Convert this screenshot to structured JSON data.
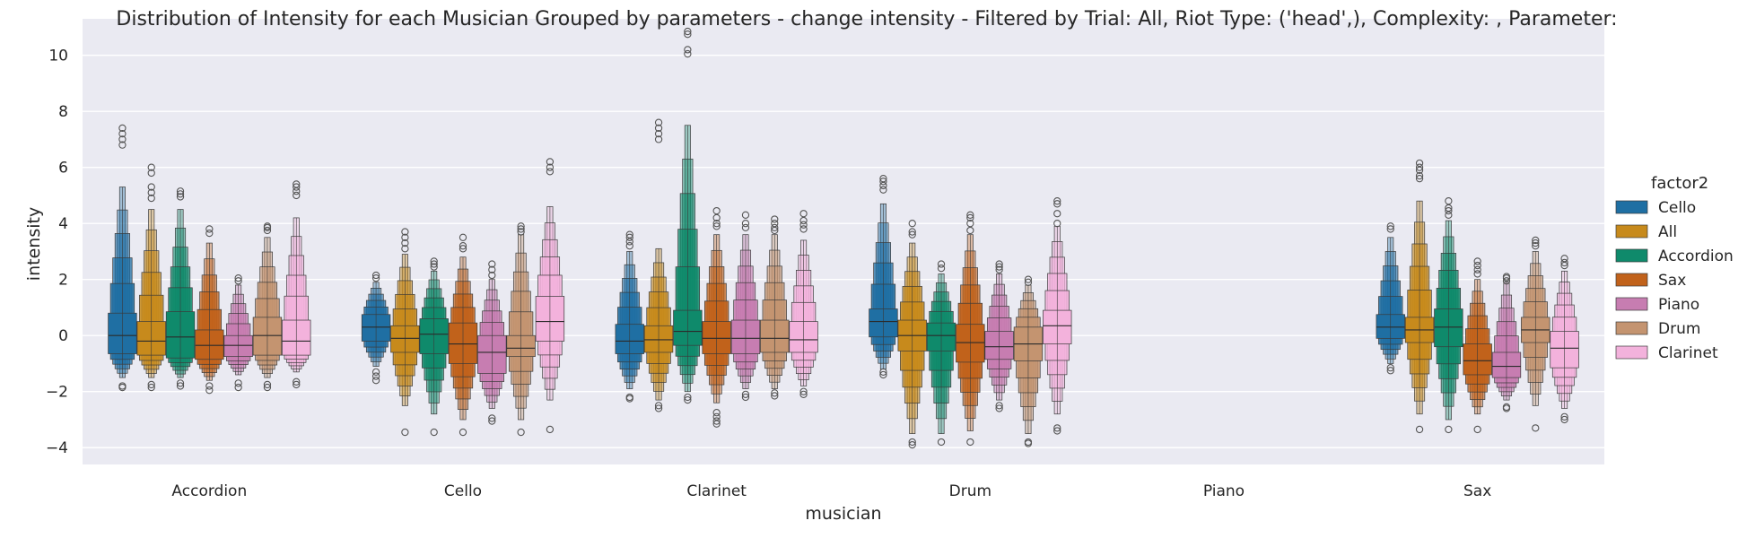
{
  "chart_data": {
    "type": "boxen",
    "title": "Distribution of Intensity for each Musician Grouped by parameters - change intensity - Filtered by Trial: All, Riot Type: ('head',), Complexity: , Parameter:",
    "xlabel": "musician",
    "ylabel": "intensity",
    "ylim": [
      -4.6,
      11.3
    ],
    "yticks": [
      -4,
      -2,
      0,
      2,
      4,
      6,
      8,
      10
    ],
    "ytick_labels": [
      "−4",
      "−2",
      "0",
      "2",
      "4",
      "6",
      "8",
      "10"
    ],
    "categories": [
      "Accordion",
      "Cello",
      "Clarinet",
      "Drum",
      "Piano",
      "Sax"
    ],
    "grid": true,
    "legend": {
      "title": "factor2",
      "placement": "center-right-outside",
      "entries": [
        {
          "name": "Cello",
          "color": "#1f6fa3"
        },
        {
          "name": "All",
          "color": "#c78a1c"
        },
        {
          "name": "Accordion",
          "color": "#0f8a6b"
        },
        {
          "name": "Sax",
          "color": "#c1621b"
        },
        {
          "name": "Piano",
          "color": "#c77db1"
        },
        {
          "name": "Drum",
          "color": "#c49470"
        },
        {
          "name": "Clarinet",
          "color": "#f3b2dc"
        }
      ]
    },
    "series": [
      {
        "name": "Cello",
        "color": "#1f6fa3",
        "stats": [
          {
            "median": 0.0,
            "q1": -0.65,
            "q3": 0.8,
            "lo": -1.5,
            "hi": 5.3,
            "outliers_low": [
              -1.8,
              -1.85
            ],
            "outliers_high": [
              6.8,
              7.0,
              7.2,
              7.4
            ]
          },
          {
            "median": 0.3,
            "q1": -0.2,
            "q3": 0.75,
            "lo": -1.1,
            "hi": 1.9,
            "outliers_low": [
              -1.3,
              -1.45,
              -1.6
            ],
            "outliers_high": [
              2.05,
              2.15
            ]
          },
          {
            "median": -0.2,
            "q1": -0.65,
            "q3": 0.4,
            "lo": -1.9,
            "hi": 3.0,
            "outliers_low": [
              -2.2,
              -2.25
            ],
            "outliers_high": [
              3.2,
              3.35,
              3.5,
              3.6
            ]
          },
          {
            "median": 0.5,
            "q1": -0.05,
            "q3": 0.95,
            "lo": -1.2,
            "hi": 4.7,
            "outliers_low": [
              -1.3,
              -1.4
            ],
            "outliers_high": [
              5.2,
              5.35,
              5.5,
              5.6
            ]
          },
          null,
          {
            "median": 0.3,
            "q1": -0.1,
            "q3": 0.75,
            "lo": -1.0,
            "hi": 3.5,
            "outliers_low": [
              -1.15,
              -1.25
            ],
            "outliers_high": [
              3.8,
              3.9
            ]
          }
        ]
      },
      {
        "name": "All",
        "color": "#c78a1c",
        "stats": [
          {
            "median": -0.2,
            "q1": -0.7,
            "q3": 0.5,
            "lo": -1.5,
            "hi": 4.5,
            "outliers_low": [
              -1.75,
              -1.85
            ],
            "outliers_high": [
              4.9,
              5.1,
              5.3,
              5.8,
              6.0
            ]
          },
          {
            "median": -0.1,
            "q1": -0.6,
            "q3": 0.35,
            "lo": -2.5,
            "hi": 2.9,
            "outliers_low": [
              -3.45
            ],
            "outliers_high": [
              3.1,
              3.3,
              3.5,
              3.7
            ]
          },
          {
            "median": -0.15,
            "q1": -0.6,
            "q3": 0.35,
            "lo": -2.3,
            "hi": 3.1,
            "outliers_low": [
              -2.5,
              -2.6
            ],
            "outliers_high": [
              7.0,
              7.2,
              7.4,
              7.6
            ]
          },
          {
            "median": 0.0,
            "q1": -0.55,
            "q3": 0.55,
            "lo": -3.5,
            "hi": 3.3,
            "outliers_low": [
              -3.8,
              -3.9
            ],
            "outliers_high": [
              3.6,
              3.7,
              4.0
            ]
          },
          null,
          {
            "median": 0.2,
            "q1": -0.25,
            "q3": 0.65,
            "lo": -2.8,
            "hi": 4.8,
            "outliers_low": [
              -3.35
            ],
            "outliers_high": [
              5.6,
              5.7,
              5.9,
              6.0,
              6.15
            ]
          }
        ]
      },
      {
        "name": "Accordion",
        "color": "#0f8a6b",
        "stats": [
          {
            "median": -0.05,
            "q1": -0.8,
            "q3": 0.85,
            "lo": -1.5,
            "hi": 4.5,
            "outliers_low": [
              -1.7,
              -1.8
            ],
            "outliers_high": [
              4.95,
              5.05,
              5.15
            ]
          },
          {
            "median": 0.05,
            "q1": -0.65,
            "q3": 0.6,
            "lo": -2.8,
            "hi": 2.3,
            "outliers_low": [
              -3.45
            ],
            "outliers_high": [
              2.45,
              2.55,
              2.65
            ]
          },
          {
            "median": 0.15,
            "q1": -0.35,
            "q3": 0.9,
            "lo": -2.0,
            "hi": 7.5,
            "outliers_low": [
              -2.2,
              -2.3
            ],
            "outliers_high": [
              10.05,
              10.2,
              10.75,
              10.85
            ]
          },
          {
            "median": 0.0,
            "q1": -0.55,
            "q3": 0.45,
            "lo": -3.5,
            "hi": 2.2,
            "outliers_low": [
              -3.8
            ],
            "outliers_high": [
              2.4,
              2.55
            ]
          },
          null,
          {
            "median": 0.3,
            "q1": -0.4,
            "q3": 0.95,
            "lo": -3.0,
            "hi": 4.1,
            "outliers_low": [
              -3.35
            ],
            "outliers_high": [
              4.3,
              4.45,
              4.55,
              4.8
            ]
          }
        ]
      },
      {
        "name": "Sax",
        "color": "#c1621b",
        "stats": [
          {
            "median": -0.35,
            "q1": -0.85,
            "q3": 0.2,
            "lo": -1.6,
            "hi": 3.3,
            "outliers_low": [
              -1.8,
              -1.95
            ],
            "outliers_high": [
              3.65,
              3.8
            ]
          },
          {
            "median": -0.3,
            "q1": -1.0,
            "q3": 0.45,
            "lo": -3.0,
            "hi": 2.8,
            "outliers_low": [
              -3.45
            ],
            "outliers_high": [
              3.1,
              3.2,
              3.5
            ]
          },
          {
            "median": -0.1,
            "q1": -0.65,
            "q3": 0.5,
            "lo": -2.4,
            "hi": 3.6,
            "outliers_low": [
              -2.75,
              -2.9,
              -3.05,
              -3.15
            ],
            "outliers_high": [
              3.9,
              4.0,
              4.2,
              4.45
            ]
          },
          {
            "median": -0.25,
            "q1": -0.95,
            "q3": 0.4,
            "lo": -3.4,
            "hi": 3.6,
            "outliers_low": [
              -3.8
            ],
            "outliers_high": [
              3.75,
              4.0,
              4.2,
              4.3
            ]
          },
          null,
          {
            "median": -0.9,
            "q1": -1.4,
            "q3": -0.3,
            "lo": -2.8,
            "hi": 2.0,
            "outliers_low": [
              -3.35
            ],
            "outliers_high": [
              2.2,
              2.35,
              2.5,
              2.65
            ]
          }
        ]
      },
      {
        "name": "Piano",
        "color": "#c77db1",
        "stats": [
          {
            "median": -0.35,
            "q1": -0.75,
            "q3": 0.0,
            "lo": -1.4,
            "hi": 1.8,
            "outliers_low": [
              -1.7,
              -1.85
            ],
            "outliers_high": [
              1.95,
              2.05
            ]
          },
          {
            "median": -0.6,
            "q1": -1.35,
            "q3": 0.0,
            "lo": -2.6,
            "hi": 2.0,
            "outliers_low": [
              -2.95,
              -3.05
            ],
            "outliers_high": [
              2.15,
              2.35,
              2.55
            ]
          },
          {
            "median": -0.1,
            "q1": -0.65,
            "q3": 0.55,
            "lo": -1.9,
            "hi": 3.6,
            "outliers_low": [
              -2.1,
              -2.2
            ],
            "outliers_high": [
              3.85,
              4.0,
              4.3
            ]
          },
          {
            "median": -0.4,
            "q1": -0.85,
            "q3": 0.15,
            "lo": -2.3,
            "hi": 2.2,
            "outliers_low": [
              -2.5,
              -2.6
            ],
            "outliers_high": [
              2.35,
              2.45,
              2.55
            ]
          },
          null,
          {
            "median": -1.1,
            "q1": -1.5,
            "q3": -0.6,
            "lo": -2.3,
            "hi": 1.9,
            "outliers_low": [
              -2.55,
              -2.6
            ],
            "outliers_high": [
              1.95,
              2.05,
              2.1
            ]
          }
        ]
      },
      {
        "name": "Drum",
        "color": "#c49470",
        "stats": [
          {
            "median": 0.0,
            "q1": -0.7,
            "q3": 0.65,
            "lo": -1.5,
            "hi": 3.5,
            "outliers_low": [
              -1.75,
              -1.85
            ],
            "outliers_high": [
              3.75,
              3.85,
              3.9
            ]
          },
          {
            "median": -0.45,
            "q1": -0.75,
            "q3": 0.0,
            "lo": -3.0,
            "hi": 3.6,
            "outliers_low": [
              -3.45
            ],
            "outliers_high": [
              3.7,
              3.8,
              3.9
            ]
          },
          {
            "median": -0.1,
            "q1": -0.6,
            "q3": 0.55,
            "lo": -1.9,
            "hi": 3.6,
            "outliers_low": [
              -2.05,
              -2.15
            ],
            "outliers_high": [
              3.75,
              3.85,
              4.0,
              4.15
            ]
          },
          {
            "median": -0.3,
            "q1": -0.9,
            "q3": 0.3,
            "lo": -3.5,
            "hi": 1.8,
            "outliers_low": [
              -3.8,
              -3.85
            ],
            "outliers_high": [
              1.9,
              2.0
            ]
          },
          null,
          {
            "median": 0.2,
            "q1": -0.25,
            "q3": 0.65,
            "lo": -2.5,
            "hi": 3.0,
            "outliers_low": [
              -3.3
            ],
            "outliers_high": [
              3.2,
              3.3,
              3.4
            ]
          }
        ]
      },
      {
        "name": "Clarinet",
        "color": "#f3b2dc",
        "stats": [
          {
            "median": -0.2,
            "q1": -0.7,
            "q3": 0.55,
            "lo": -1.3,
            "hi": 4.2,
            "outliers_low": [
              -1.65,
              -1.75
            ],
            "outliers_high": [
              5.0,
              5.15,
              5.3,
              5.4
            ]
          },
          {
            "median": 0.5,
            "q1": -0.2,
            "q3": 1.4,
            "lo": -2.3,
            "hi": 4.6,
            "outliers_low": [
              -3.35
            ],
            "outliers_high": [
              5.85,
              6.0,
              6.2
            ]
          },
          {
            "median": -0.15,
            "q1": -0.6,
            "q3": 0.5,
            "lo": -1.8,
            "hi": 3.4,
            "outliers_low": [
              -2.0,
              -2.1
            ],
            "outliers_high": [
              3.8,
              3.95,
              4.1,
              4.35
            ]
          },
          {
            "median": 0.35,
            "q1": -0.3,
            "q3": 0.9,
            "lo": -2.8,
            "hi": 3.9,
            "outliers_low": [
              -3.3,
              -3.4
            ],
            "outliers_high": [
              4.0,
              4.35,
              4.7,
              4.8
            ]
          },
          null,
          {
            "median": -0.45,
            "q1": -1.15,
            "q3": 0.15,
            "lo": -2.6,
            "hi": 2.3,
            "outliers_low": [
              -2.9,
              -3.0
            ],
            "outliers_high": [
              2.5,
              2.6,
              2.75
            ]
          }
        ]
      }
    ]
  }
}
